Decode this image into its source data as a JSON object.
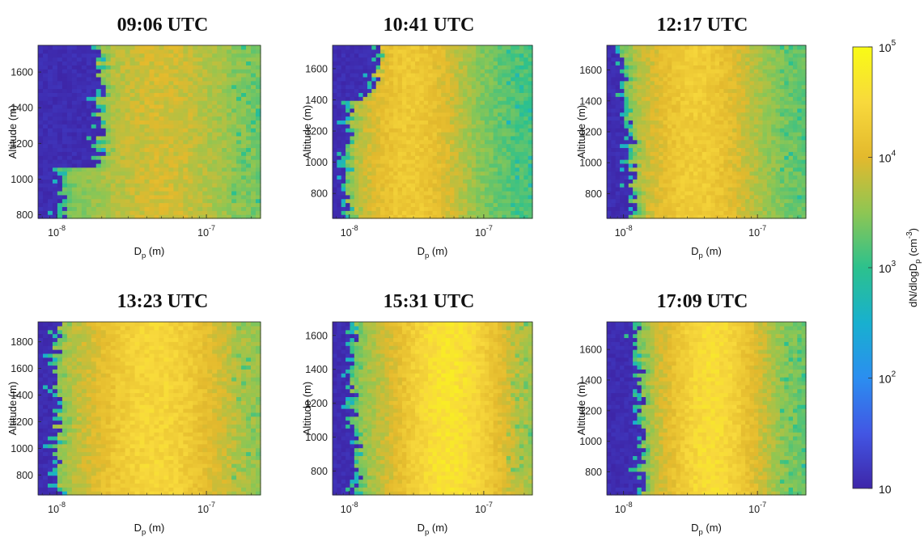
{
  "chart_data": [
    {
      "type": "heatmap",
      "title": "09:06 UTC",
      "xlabel": "D",
      "xlabel_sub": "p",
      "xlabel_unit": " (m)",
      "ylabel": "Altitude (m)",
      "x_scale": "log",
      "xlim": [
        7.5e-09,
        2.3e-07
      ],
      "x_tick_exps": [
        -8,
        -7
      ],
      "ylim": [
        780,
        1750
      ],
      "y_ticks": [
        800,
        1000,
        1200,
        1400,
        1600
      ],
      "peak_dp": 5e-08,
      "peak_log10_conc": 3.9,
      "peak_width": 0.55,
      "floor_log10_conc": 3.2,
      "cutoff": [
        [
          780,
          1.1e-08
        ],
        [
          1060,
          1.1e-08
        ],
        [
          1065,
          2e-08
        ],
        [
          1750,
          2e-08
        ]
      ]
    },
    {
      "type": "heatmap",
      "title": "10:41 UTC",
      "xlabel": "D",
      "xlabel_sub": "p",
      "xlabel_unit": " (m)",
      "ylabel": "Altitude (m)",
      "x_scale": "log",
      "xlim": [
        7.5e-09,
        2.3e-07
      ],
      "x_tick_exps": [
        -8,
        -7
      ],
      "ylim": [
        640,
        1750
      ],
      "y_ticks": [
        800,
        1000,
        1200,
        1400,
        1600
      ],
      "peak_dp": 2.8e-08,
      "peak_log10_conc": 4.25,
      "peak_width": 0.5,
      "floor_log10_conc": 3.1,
      "cutoff": [
        [
          640,
          1e-08
        ],
        [
          1400,
          1e-08
        ],
        [
          1410,
          1.4e-08
        ],
        [
          1560,
          1.6e-08
        ],
        [
          1750,
          1.8e-08
        ]
      ]
    },
    {
      "type": "heatmap",
      "title": "12:17 UTC",
      "xlabel": "D",
      "xlabel_sub": "p",
      "xlabel_unit": " (m)",
      "ylabel": "Altitude (m)",
      "x_scale": "log",
      "xlim": [
        7.5e-09,
        2.3e-07
      ],
      "x_tick_exps": [
        -8,
        -7
      ],
      "ylim": [
        640,
        1760
      ],
      "y_ticks": [
        800,
        1000,
        1200,
        1400,
        1600
      ],
      "peak_dp": 3.5e-08,
      "peak_log10_conc": 4.3,
      "peak_width": 0.5,
      "floor_log10_conc": 3.2,
      "cutoff": [
        [
          640,
          1.2e-08
        ],
        [
          1000,
          1.15e-08
        ],
        [
          1760,
          1e-08
        ]
      ]
    },
    {
      "type": "heatmap",
      "title": "13:23 UTC",
      "xlabel": "D",
      "xlabel_sub": "p",
      "xlabel_unit": " (m)",
      "ylabel": "Altitude (m)",
      "x_scale": "log",
      "xlim": [
        7.5e-09,
        2.3e-07
      ],
      "x_tick_exps": [
        -8,
        -7
      ],
      "ylim": [
        650,
        1950
      ],
      "y_ticks": [
        800,
        1000,
        1200,
        1400,
        1600,
        1800
      ],
      "peak_dp": 4.5e-08,
      "peak_log10_conc": 4.45,
      "peak_width": 0.55,
      "floor_log10_conc": 3.3,
      "cutoff": [
        [
          650,
          1.05e-08
        ],
        [
          1950,
          1e-08
        ]
      ]
    },
    {
      "type": "heatmap",
      "title": "15:31 UTC",
      "xlabel": "D",
      "xlabel_sub": "p",
      "xlabel_unit": " (m)",
      "ylabel": "Altitude (m)",
      "x_scale": "log",
      "xlim": [
        7.5e-09,
        2.3e-07
      ],
      "x_tick_exps": [
        -8,
        -7
      ],
      "ylim": [
        660,
        1680
      ],
      "y_ticks": [
        800,
        1000,
        1200,
        1400,
        1600
      ],
      "peak_dp": 5.5e-08,
      "peak_log10_conc": 4.65,
      "peak_width": 0.5,
      "floor_log10_conc": 3.3,
      "cutoff": [
        [
          660,
          1.15e-08
        ],
        [
          1680,
          1.05e-08
        ]
      ]
    },
    {
      "type": "heatmap",
      "title": "17:09 UTC",
      "xlabel": "D",
      "xlabel_sub": "p",
      "xlabel_unit": " (m)",
      "ylabel": "Altitude (m)",
      "x_scale": "log",
      "xlim": [
        7.5e-09,
        2.3e-07
      ],
      "x_tick_exps": [
        -8,
        -7
      ],
      "ylim": [
        650,
        1780
      ],
      "y_ticks": [
        800,
        1000,
        1200,
        1400,
        1600
      ],
      "peak_dp": 4.5e-08,
      "peak_log10_conc": 4.55,
      "peak_width": 0.45,
      "floor_log10_conc": 3.2,
      "cutoff": [
        [
          650,
          1.4e-08
        ],
        [
          1780,
          1.3e-08
        ]
      ]
    }
  ],
  "colorbar": {
    "label": "dN/dlogD",
    "label_sub": "p",
    "label_unit": " (cm",
    "label_unit_sup": "-3",
    "label_close": ")",
    "scale": "log",
    "range": [
      10,
      100000
    ],
    "tick_values": [
      10,
      100,
      1000,
      10000,
      100000
    ],
    "tick_labels": [
      {
        "base": "10",
        "exp": ""
      },
      {
        "base": "10",
        "exp": "2"
      },
      {
        "base": "10",
        "exp": "3"
      },
      {
        "base": "10",
        "exp": "4"
      },
      {
        "base": "10",
        "exp": "5"
      }
    ]
  },
  "colors": {
    "stops": [
      "#3e26a8",
      "#4256e4",
      "#2b8ef0",
      "#18b0cf",
      "#2cc18d",
      "#8ec653",
      "#e3b92d",
      "#f8d93c",
      "#f9fb15"
    ],
    "low": "#352a87"
  }
}
